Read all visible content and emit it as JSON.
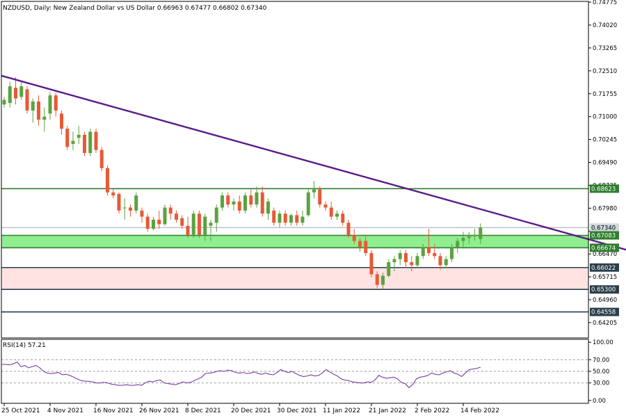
{
  "chart_data": {
    "type": "candlestick",
    "header": "NZDUSD, Daily:  New Zealand Dollar vs US Dollar  0.66963 0.67477 0.66802 0.67340",
    "price_axis": {
      "ylim": [
        0.637,
        0.748
      ],
      "ticks": [
        "0.74775",
        "0.74020",
        "0.73265",
        "0.72510",
        "0.71755",
        "0.71000",
        "0.70245",
        "0.69490",
        "0.68735",
        "0.67980",
        "0.67225",
        "0.66470",
        "0.65715",
        "0.64960",
        "0.64205"
      ]
    },
    "date_axis": [
      "25 Oct 2021",
      "4 Nov 2021",
      "16 Nov 2021",
      "26 Nov 2021",
      "8 Dec 2021",
      "20 Dec 2021",
      "30 Dec 2021",
      "11 Jan 2022",
      "21 Jan 2022",
      "2 Feb 2022",
      "14 Feb 2022"
    ],
    "colors": {
      "bull": "#5aa33f",
      "bear": "#e65a35",
      "trendline": "#5b1b8a",
      "level_line": "#2f7d2f",
      "level_line_dark": "#2a3f4a",
      "green_zone": "#90ee90",
      "pink_zone": "#ffe2e2",
      "rsi_line": "#6b2a9a",
      "current_price_line": "#9aa8b0"
    },
    "candles": [
      {
        "o": 0.714,
        "h": 0.7165,
        "l": 0.713,
        "c": 0.7155
      },
      {
        "o": 0.7145,
        "h": 0.7215,
        "l": 0.713,
        "c": 0.72
      },
      {
        "o": 0.7195,
        "h": 0.723,
        "l": 0.714,
        "c": 0.716
      },
      {
        "o": 0.7165,
        "h": 0.7215,
        "l": 0.7155,
        "c": 0.72
      },
      {
        "o": 0.719,
        "h": 0.72,
        "l": 0.711,
        "c": 0.712
      },
      {
        "o": 0.712,
        "h": 0.716,
        "l": 0.708,
        "c": 0.715
      },
      {
        "o": 0.715,
        "h": 0.717,
        "l": 0.707,
        "c": 0.709
      },
      {
        "o": 0.709,
        "h": 0.713,
        "l": 0.705,
        "c": 0.71
      },
      {
        "o": 0.711,
        "h": 0.718,
        "l": 0.709,
        "c": 0.717
      },
      {
        "o": 0.717,
        "h": 0.718,
        "l": 0.71,
        "c": 0.712
      },
      {
        "o": 0.711,
        "h": 0.712,
        "l": 0.704,
        "c": 0.706
      },
      {
        "o": 0.706,
        "h": 0.707,
        "l": 0.699,
        "c": 0.7
      },
      {
        "o": 0.701,
        "h": 0.705,
        "l": 0.699,
        "c": 0.702
      },
      {
        "o": 0.703,
        "h": 0.707,
        "l": 0.701,
        "c": 0.704
      },
      {
        "o": 0.704,
        "h": 0.705,
        "l": 0.697,
        "c": 0.698
      },
      {
        "o": 0.698,
        "h": 0.706,
        "l": 0.697,
        "c": 0.705
      },
      {
        "o": 0.705,
        "h": 0.706,
        "l": 0.698,
        "c": 0.699
      },
      {
        "o": 0.699,
        "h": 0.7,
        "l": 0.692,
        "c": 0.693
      },
      {
        "o": 0.693,
        "h": 0.694,
        "l": 0.684,
        "c": 0.685
      },
      {
        "o": 0.685,
        "h": 0.686,
        "l": 0.683,
        "c": 0.684
      },
      {
        "o": 0.6845,
        "h": 0.685,
        "l": 0.678,
        "c": 0.679
      },
      {
        "o": 0.68,
        "h": 0.683,
        "l": 0.676,
        "c": 0.68
      },
      {
        "o": 0.68,
        "h": 0.681,
        "l": 0.677,
        "c": 0.679
      },
      {
        "o": 0.679,
        "h": 0.685,
        "l": 0.678,
        "c": 0.684
      },
      {
        "o": 0.679,
        "h": 0.68,
        "l": 0.675,
        "c": 0.677
      },
      {
        "o": 0.677,
        "h": 0.678,
        "l": 0.672,
        "c": 0.673
      },
      {
        "o": 0.673,
        "h": 0.677,
        "l": 0.6725,
        "c": 0.676
      },
      {
        "o": 0.676,
        "h": 0.679,
        "l": 0.673,
        "c": 0.6745
      },
      {
        "o": 0.6745,
        "h": 0.681,
        "l": 0.674,
        "c": 0.68
      },
      {
        "o": 0.68,
        "h": 0.681,
        "l": 0.676,
        "c": 0.678
      },
      {
        "o": 0.678,
        "h": 0.679,
        "l": 0.675,
        "c": 0.676
      },
      {
        "o": 0.6765,
        "h": 0.6775,
        "l": 0.673,
        "c": 0.674
      },
      {
        "o": 0.674,
        "h": 0.677,
        "l": 0.67,
        "c": 0.671
      },
      {
        "o": 0.671,
        "h": 0.679,
        "l": 0.67,
        "c": 0.678
      },
      {
        "o": 0.678,
        "h": 0.679,
        "l": 0.67,
        "c": 0.671
      },
      {
        "o": 0.671,
        "h": 0.678,
        "l": 0.669,
        "c": 0.677
      },
      {
        "o": 0.674,
        "h": 0.676,
        "l": 0.669,
        "c": 0.675
      },
      {
        "o": 0.675,
        "h": 0.681,
        "l": 0.672,
        "c": 0.68
      },
      {
        "o": 0.68,
        "h": 0.685,
        "l": 0.679,
        "c": 0.684
      },
      {
        "o": 0.684,
        "h": 0.685,
        "l": 0.68,
        "c": 0.681
      },
      {
        "o": 0.681,
        "h": 0.683,
        "l": 0.679,
        "c": 0.682
      },
      {
        "o": 0.682,
        "h": 0.684,
        "l": 0.678,
        "c": 0.679
      },
      {
        "o": 0.679,
        "h": 0.685,
        "l": 0.678,
        "c": 0.684
      },
      {
        "o": 0.684,
        "h": 0.686,
        "l": 0.68,
        "c": 0.681
      },
      {
        "o": 0.681,
        "h": 0.687,
        "l": 0.68,
        "c": 0.685
      },
      {
        "o": 0.685,
        "h": 0.687,
        "l": 0.677,
        "c": 0.678
      },
      {
        "o": 0.678,
        "h": 0.683,
        "l": 0.676,
        "c": 0.682
      },
      {
        "o": 0.679,
        "h": 0.68,
        "l": 0.674,
        "c": 0.675
      },
      {
        "o": 0.675,
        "h": 0.679,
        "l": 0.6735,
        "c": 0.678
      },
      {
        "o": 0.678,
        "h": 0.679,
        "l": 0.674,
        "c": 0.675
      },
      {
        "o": 0.675,
        "h": 0.678,
        "l": 0.674,
        "c": 0.6775
      },
      {
        "o": 0.6775,
        "h": 0.679,
        "l": 0.674,
        "c": 0.675
      },
      {
        "o": 0.675,
        "h": 0.679,
        "l": 0.674,
        "c": 0.677
      },
      {
        "o": 0.6775,
        "h": 0.686,
        "l": 0.677,
        "c": 0.685
      },
      {
        "o": 0.685,
        "h": 0.6888,
        "l": 0.683,
        "c": 0.686
      },
      {
        "o": 0.686,
        "h": 0.687,
        "l": 0.68,
        "c": 0.681
      },
      {
        "o": 0.681,
        "h": 0.682,
        "l": 0.679,
        "c": 0.68
      },
      {
        "o": 0.68,
        "h": 0.682,
        "l": 0.676,
        "c": 0.677
      },
      {
        "o": 0.677,
        "h": 0.679,
        "l": 0.676,
        "c": 0.678
      },
      {
        "o": 0.678,
        "h": 0.679,
        "l": 0.674,
        "c": 0.675
      },
      {
        "o": 0.675,
        "h": 0.676,
        "l": 0.67,
        "c": 0.671
      },
      {
        "o": 0.671,
        "h": 0.673,
        "l": 0.668,
        "c": 0.669
      },
      {
        "o": 0.669,
        "h": 0.67,
        "l": 0.6655,
        "c": 0.667
      },
      {
        "o": 0.669,
        "h": 0.671,
        "l": 0.664,
        "c": 0.665
      },
      {
        "o": 0.665,
        "h": 0.666,
        "l": 0.657,
        "c": 0.658
      },
      {
        "o": 0.658,
        "h": 0.659,
        "l": 0.6535,
        "c": 0.6545
      },
      {
        "o": 0.6545,
        "h": 0.6585,
        "l": 0.653,
        "c": 0.6575
      },
      {
        "o": 0.6575,
        "h": 0.663,
        "l": 0.657,
        "c": 0.662
      },
      {
        "o": 0.662,
        "h": 0.664,
        "l": 0.659,
        "c": 0.663
      },
      {
        "o": 0.663,
        "h": 0.666,
        "l": 0.661,
        "c": 0.665
      },
      {
        "o": 0.665,
        "h": 0.666,
        "l": 0.66,
        "c": 0.662
      },
      {
        "o": 0.662,
        "h": 0.664,
        "l": 0.659,
        "c": 0.661
      },
      {
        "o": 0.661,
        "h": 0.665,
        "l": 0.66,
        "c": 0.664
      },
      {
        "o": 0.664,
        "h": 0.668,
        "l": 0.663,
        "c": 0.667
      },
      {
        "o": 0.667,
        "h": 0.673,
        "l": 0.664,
        "c": 0.665
      },
      {
        "o": 0.665,
        "h": 0.668,
        "l": 0.663,
        "c": 0.664
      },
      {
        "o": 0.664,
        "h": 0.665,
        "l": 0.6595,
        "c": 0.661
      },
      {
        "o": 0.661,
        "h": 0.664,
        "l": 0.66,
        "c": 0.663
      },
      {
        "o": 0.663,
        "h": 0.668,
        "l": 0.662,
        "c": 0.667
      },
      {
        "o": 0.667,
        "h": 0.67,
        "l": 0.665,
        "c": 0.669
      },
      {
        "o": 0.669,
        "h": 0.672,
        "l": 0.667,
        "c": 0.67
      },
      {
        "o": 0.67,
        "h": 0.672,
        "l": 0.668,
        "c": 0.6705
      },
      {
        "o": 0.6705,
        "h": 0.673,
        "l": 0.669,
        "c": 0.671
      },
      {
        "o": 0.66963,
        "h": 0.67477,
        "l": 0.66802,
        "c": 0.6734
      }
    ],
    "trendline": [
      {
        "index": -0.5,
        "price": 0.7235
      },
      {
        "index": 126,
        "price": 0.6568
      }
    ],
    "levels": [
      {
        "price": 0.68623,
        "label": "0.68623",
        "style": "green"
      },
      {
        "price": 0.67083,
        "label": "0.67083",
        "style": "green"
      },
      {
        "price": 0.66674,
        "label": "0.66674",
        "style": "green"
      },
      {
        "price": 0.66022,
        "label": "0.66022",
        "style": "dark"
      },
      {
        "price": 0.653,
        "label": "0.65300",
        "style": "dark"
      },
      {
        "price": 0.64558,
        "label": "0.64558",
        "style": "dark"
      }
    ],
    "zones": [
      {
        "from": 0.66674,
        "to": 0.67083,
        "style": "green"
      },
      {
        "from": 0.653,
        "to": 0.66022,
        "style": "pink"
      }
    ],
    "current_price": {
      "price": 0.6734,
      "label": "0.67340"
    },
    "rsi": {
      "label": "RSI(14) 57.21",
      "ylim": [
        -5,
        105
      ],
      "ticks": [
        "100.00",
        "70.00",
        "50.00",
        "30.00",
        "0.00"
      ],
      "levels": [
        70,
        50,
        30
      ],
      "values": [
        62,
        62,
        61,
        63,
        66,
        58,
        60,
        56,
        58,
        60,
        56,
        50,
        47,
        46,
        47,
        48,
        44,
        45,
        43,
        40,
        37,
        34,
        33,
        33,
        32,
        30,
        30,
        31,
        30,
        28,
        27,
        26,
        26,
        27,
        26,
        26,
        27,
        26,
        30,
        33,
        32,
        34,
        35,
        30,
        29,
        28,
        27,
        29,
        32,
        30,
        31,
        34,
        37,
        40,
        46,
        47,
        48,
        50,
        51,
        50,
        52,
        51,
        48,
        47,
        48,
        46,
        47,
        49,
        46,
        45,
        47,
        45,
        44,
        48,
        53,
        50,
        48,
        50,
        46,
        43,
        41,
        42,
        44,
        42,
        43,
        47,
        53,
        49,
        45,
        42,
        37,
        35,
        34,
        32,
        31,
        30,
        30,
        32,
        31,
        35,
        43,
        40,
        38,
        39,
        40,
        37,
        31,
        29,
        22,
        27,
        37,
        40,
        41,
        43,
        47,
        45,
        44,
        47,
        49,
        51,
        47,
        45,
        41,
        47,
        53,
        54,
        55,
        57
      ]
    }
  }
}
